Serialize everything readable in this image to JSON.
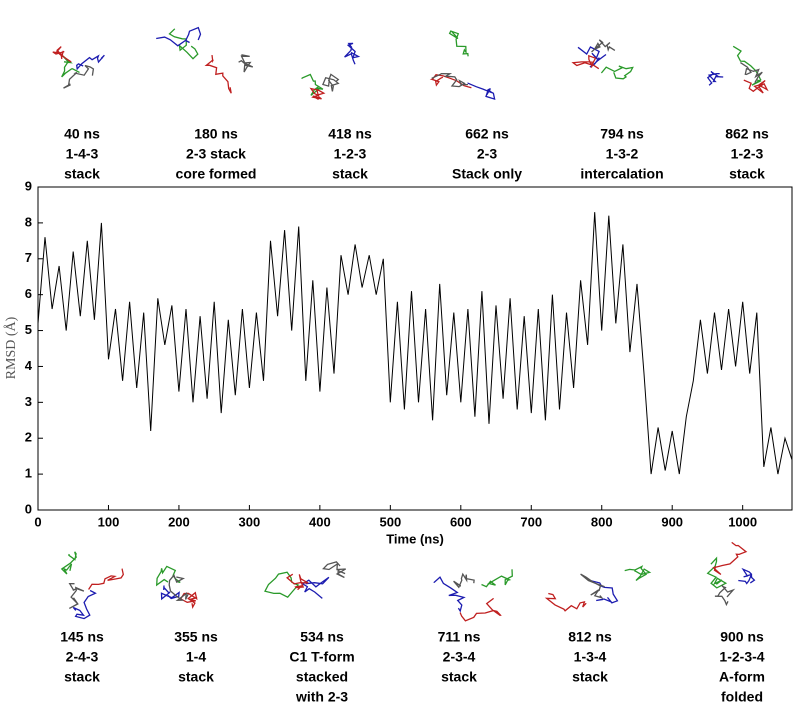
{
  "chart_data": {
    "type": "line",
    "color": "#000000",
    "xlabel": "Time (ns)",
    "ylabel": "RMSD (Å)",
    "xlim": [
      0,
      1070
    ],
    "ylim": [
      0,
      9
    ],
    "xticks": [
      0,
      100,
      200,
      300,
      400,
      500,
      600,
      700,
      800,
      900,
      1000
    ],
    "yticks": [
      0,
      1,
      2,
      3,
      4,
      5,
      6,
      7,
      8,
      9
    ],
    "x": [
      0,
      10,
      20,
      30,
      40,
      50,
      60,
      70,
      80,
      90,
      100,
      110,
      120,
      130,
      140,
      150,
      160,
      170,
      180,
      190,
      200,
      210,
      220,
      230,
      240,
      250,
      260,
      270,
      280,
      290,
      300,
      310,
      320,
      330,
      340,
      350,
      360,
      370,
      380,
      390,
      400,
      410,
      420,
      430,
      440,
      450,
      460,
      470,
      480,
      490,
      500,
      510,
      520,
      530,
      540,
      550,
      560,
      570,
      580,
      590,
      600,
      610,
      620,
      630,
      640,
      650,
      660,
      670,
      680,
      690,
      700,
      710,
      720,
      730,
      740,
      750,
      760,
      770,
      780,
      790,
      800,
      810,
      820,
      830,
      840,
      850,
      860,
      870,
      880,
      890,
      900,
      910,
      920,
      930,
      940,
      950,
      960,
      970,
      980,
      990,
      1000,
      1010,
      1020,
      1030,
      1040,
      1050,
      1060,
      1070
    ],
    "values": [
      5.2,
      7.6,
      5.6,
      6.8,
      5.0,
      7.2,
      5.4,
      7.5,
      5.3,
      8.0,
      4.2,
      5.6,
      3.6,
      5.8,
      3.4,
      5.5,
      2.2,
      5.9,
      4.6,
      5.7,
      3.3,
      5.6,
      3.0,
      5.4,
      3.1,
      5.8,
      2.7,
      5.3,
      3.2,
      5.6,
      3.4,
      5.5,
      3.6,
      7.5,
      5.4,
      7.8,
      5.0,
      7.9,
      3.6,
      6.4,
      3.3,
      6.2,
      3.8,
      7.1,
      6.0,
      7.4,
      6.2,
      7.1,
      6.0,
      7.0,
      3.0,
      5.8,
      2.8,
      6.1,
      3.0,
      5.6,
      2.5,
      6.3,
      3.2,
      5.5,
      3.0,
      5.6,
      2.6,
      6.1,
      2.4,
      5.7,
      3.1,
      5.9,
      2.8,
      5.4,
      2.7,
      5.6,
      2.5,
      6.0,
      2.8,
      5.5,
      3.4,
      6.4,
      4.6,
      8.3,
      5.0,
      8.2,
      5.2,
      7.4,
      4.4,
      6.3,
      3.8,
      1.0,
      2.3,
      1.1,
      2.2,
      1.0,
      2.6,
      3.6,
      5.3,
      3.8,
      5.5,
      3.9,
      5.6,
      4.0,
      5.8,
      3.8,
      5.5,
      1.2,
      2.3,
      1.0,
      2.0,
      1.4
    ],
    "annotations_top": [
      {
        "lines": [
          "40 ns",
          "1-4-3",
          "stack"
        ]
      },
      {
        "lines": [
          "180 ns",
          "2-3 stack",
          "core formed"
        ]
      },
      {
        "lines": [
          "418 ns",
          "1-2-3",
          "stack"
        ]
      },
      {
        "lines": [
          "662 ns",
          "2-3",
          "Stack only"
        ]
      },
      {
        "lines": [
          "794 ns",
          "1-3-2",
          "intercalation"
        ]
      },
      {
        "lines": [
          "862 ns",
          "1-2-3",
          "stack"
        ]
      }
    ],
    "annotations_bottom": [
      {
        "lines": [
          "145 ns",
          "2-4-3",
          "stack"
        ]
      },
      {
        "lines": [
          "355 ns",
          "1-4",
          "stack"
        ]
      },
      {
        "lines": [
          "534 ns",
          "C1 T-form",
          "stacked",
          "with 2-3"
        ]
      },
      {
        "lines": [
          "711 ns",
          "2-3-4",
          "stack"
        ]
      },
      {
        "lines": [
          "812 ns",
          "1-3-4",
          "stack"
        ]
      },
      {
        "lines": [
          "900 ns",
          "1-2-3-4",
          "A-form",
          "folded"
        ]
      }
    ]
  }
}
